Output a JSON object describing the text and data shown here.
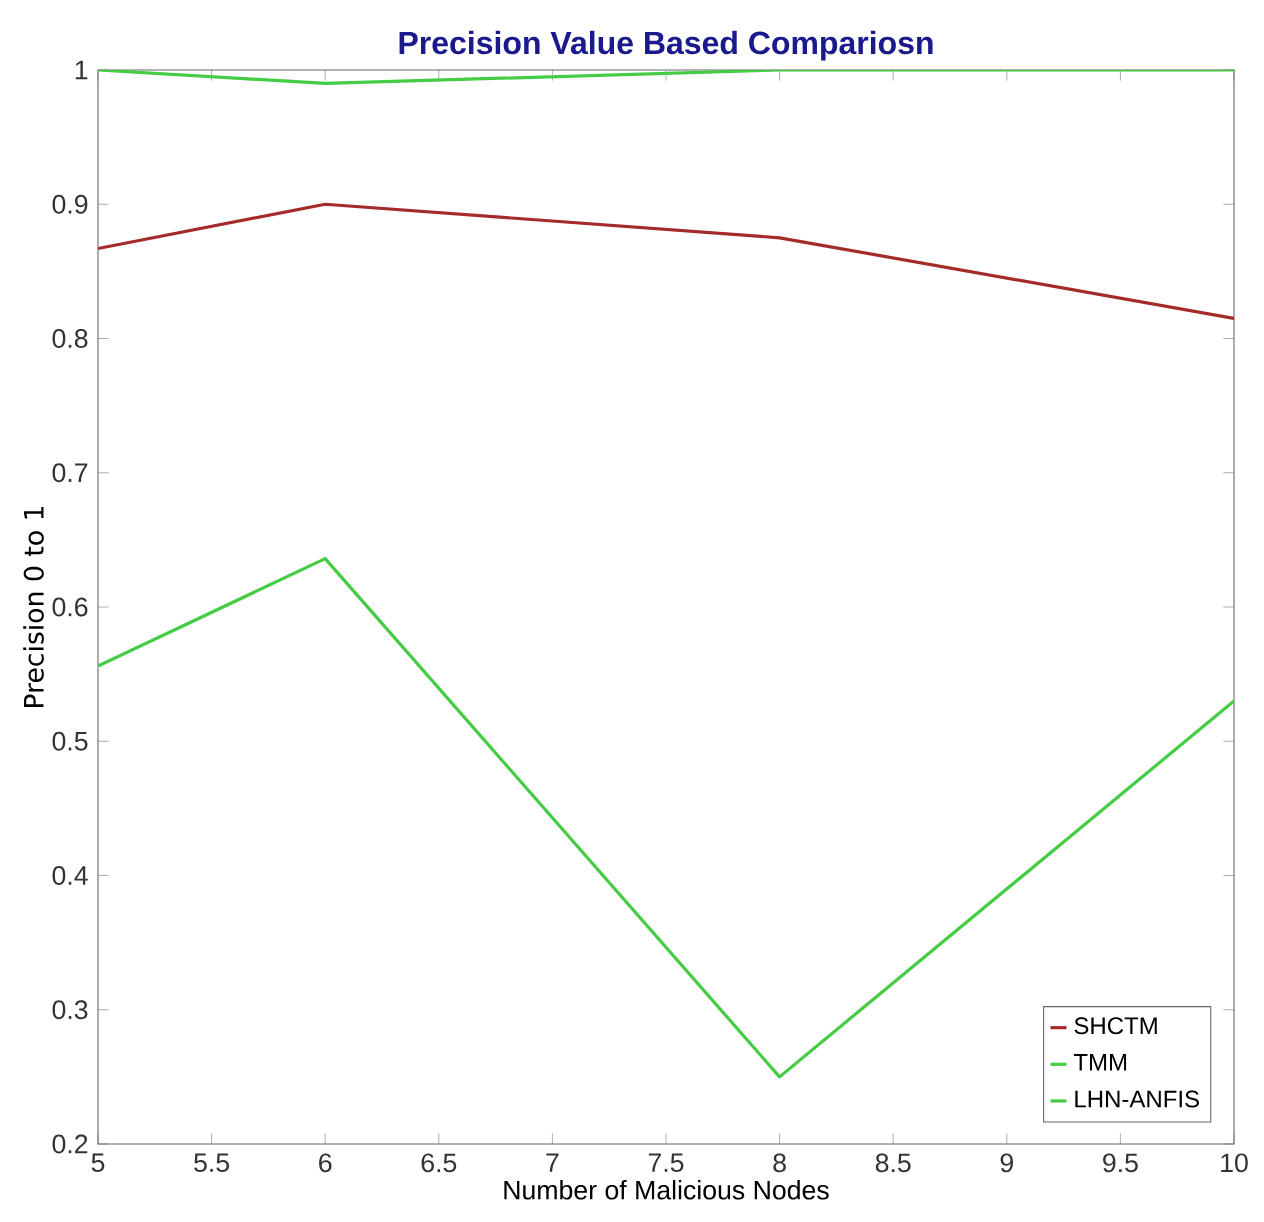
{
  "chart_data": {
    "type": "line",
    "title": "Precision Value Based Compariosn",
    "xlabel": "Number of Malicious Nodes",
    "ylabel": "Precision 0 to 1",
    "x": [
      5,
      6,
      8,
      10
    ],
    "series": [
      {
        "name": "SHCTM",
        "color": "#a52a2a",
        "values": [
          0.867,
          0.9,
          0.875,
          0.815
        ]
      },
      {
        "name": "TMM",
        "color": "#44cc44",
        "values": [
          1,
          0.99,
          1,
          1
        ]
      },
      {
        "name": "LHN-ANFIS",
        "color": "#44cc44",
        "values": [
          0.556,
          0.636,
          0.25,
          0.53
        ]
      }
    ],
    "xlim": [
      5,
      10
    ],
    "ylim": [
      0.2,
      1
    ],
    "xticks": [
      5,
      5.5,
      6,
      6.5,
      7,
      7.5,
      8,
      8.5,
      9,
      9.5,
      10
    ],
    "yticks": [
      0.2,
      0.3,
      0.4,
      0.5,
      0.6,
      0.7,
      0.8,
      0.9,
      1
    ],
    "legend": "bottom right",
    "grid": false,
    "marker": "none",
    "line_style": "solid"
  }
}
